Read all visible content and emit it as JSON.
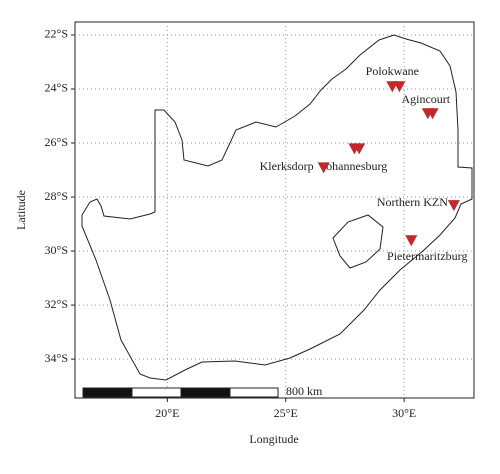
{
  "chart_data": {
    "type": "scatter",
    "x_label": "Longitude",
    "y_label": "Latitude",
    "xlim": [
      16.1,
      32.95
    ],
    "ylim": [
      -35.44,
      -21.52
    ],
    "xticks": [
      {
        "value": 20,
        "label": "20°E"
      },
      {
        "value": 25,
        "label": "25°E"
      },
      {
        "value": 30,
        "label": "30°E"
      }
    ],
    "yticks": [
      {
        "value": -22,
        "label": "22°S"
      },
      {
        "value": -24,
        "label": "24°S"
      },
      {
        "value": -26,
        "label": "26°S"
      },
      {
        "value": -28,
        "label": "28°S"
      },
      {
        "value": -30,
        "label": "30°S"
      },
      {
        "value": -32,
        "label": "32°S"
      },
      {
        "value": -34,
        "label": "34°S"
      }
    ],
    "grid": true,
    "color": "#c0282d",
    "x": [
      29.5,
      29.8,
      31.0,
      31.2,
      27.9,
      28.1,
      26.6,
      32.1,
      30.3
    ],
    "values": [
      -23.9,
      -23.9,
      -24.9,
      -24.9,
      -26.2,
      -26.2,
      -26.9,
      -28.3,
      -29.6
    ],
    "point_labels": [
      "Polokwane",
      null,
      "Agincourt",
      null,
      "Johannesburg",
      null,
      "Klerksdorp",
      "Northern KZN",
      "Pietermaritzburg"
    ],
    "scale_label": "800 km"
  }
}
